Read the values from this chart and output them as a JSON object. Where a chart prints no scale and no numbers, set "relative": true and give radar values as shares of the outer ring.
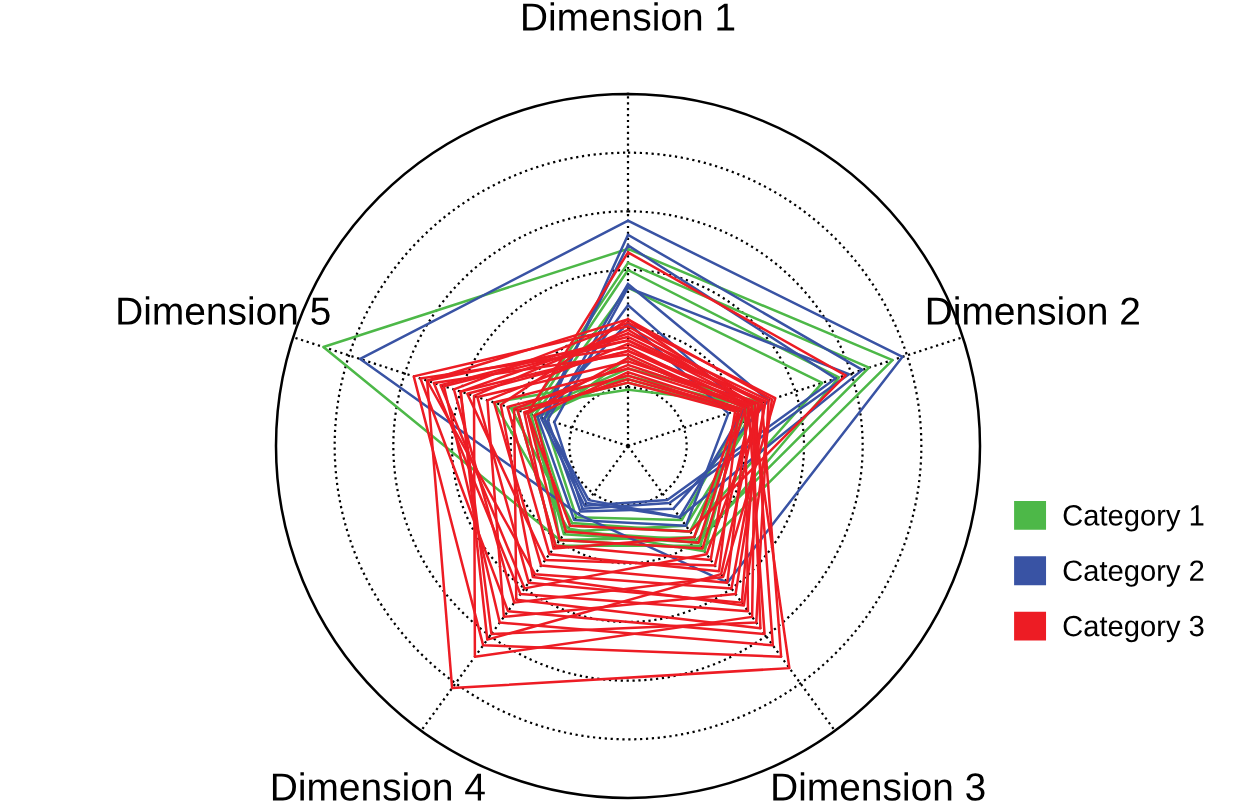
{
  "chart_data": {
    "type": "radar",
    "relative": true,
    "categories": [
      "Dimension 1",
      "Dimension 2",
      "Dimension 3",
      "Dimension 4",
      "Dimension 5"
    ],
    "grid": true,
    "legend": "right",
    "line_style": "solid",
    "marker": "none",
    "series": [
      {
        "name": "Category 1",
        "color": "#4db848",
        "values": [
          0.56,
          0.79,
          0.36,
          0.33,
          0.91
        ]
      },
      {
        "color": "#4db848",
        "values": [
          0.52,
          0.72,
          0.33,
          0.3,
          0.3
        ]
      },
      {
        "color": "#4db848",
        "values": [
          0.45,
          0.58,
          0.3,
          0.28,
          0.28
        ]
      },
      {
        "color": "#4db848",
        "values": [
          0.22,
          0.4,
          0.28,
          0.3,
          0.3
        ]
      },
      {
        "color": "#4db848",
        "values": [
          0.2,
          0.36,
          0.32,
          0.33,
          0.27
        ]
      },
      {
        "color": "#4db848",
        "values": [
          0.18,
          0.33,
          0.35,
          0.35,
          0.33
        ]
      },
      {
        "color": "#4db848",
        "values": [
          0.16,
          0.38,
          0.3,
          0.27,
          0.35
        ]
      },
      {
        "color": "#4db848",
        "values": [
          0.25,
          0.35,
          0.26,
          0.25,
          0.25
        ]
      },
      {
        "color": "#4db848",
        "values": [
          0.5,
          0.63,
          0.34,
          0.31,
          0.29
        ]
      },
      {
        "color": "#4db848",
        "values": [
          0.19,
          0.34,
          0.37,
          0.29,
          0.4
        ]
      },
      {
        "name": "Category 2",
        "color": "#3953a4",
        "values": [
          0.64,
          0.82,
          0.48,
          0.24,
          0.8
        ]
      },
      {
        "color": "#3953a4",
        "values": [
          0.6,
          0.7,
          0.25,
          0.2,
          0.25
        ]
      },
      {
        "color": "#3953a4",
        "values": [
          0.45,
          0.66,
          0.2,
          0.22,
          0.22
        ]
      },
      {
        "color": "#3953a4",
        "values": [
          0.46,
          0.42,
          0.22,
          0.23,
          0.24
        ]
      },
      {
        "color": "#3953a4",
        "values": [
          0.4,
          0.35,
          0.25,
          0.19,
          0.25
        ]
      },
      {
        "color": "#3953a4",
        "values": [
          0.57,
          0.62,
          0.19,
          0.21,
          0.26
        ]
      },
      {
        "color": "#3953a4",
        "values": [
          0.35,
          0.3,
          0.28,
          0.26,
          0.27
        ]
      },
      {
        "name": "Category 3",
        "color": "#ed1c24",
        "values": [
          0.55,
          0.65,
          0.3,
          0.28,
          0.3
        ]
      },
      {
        "color": "#ed1c24",
        "values": [
          0.36,
          0.37,
          0.78,
          0.85,
          0.6
        ]
      },
      {
        "color": "#ed1c24",
        "values": [
          0.34,
          0.4,
          0.74,
          0.7,
          0.64
        ]
      },
      {
        "color": "#ed1c24",
        "values": [
          0.3,
          0.38,
          0.7,
          0.62,
          0.55
        ]
      },
      {
        "color": "#ed1c24",
        "values": [
          0.28,
          0.36,
          0.66,
          0.58,
          0.62
        ]
      },
      {
        "color": "#ed1c24",
        "values": [
          0.32,
          0.42,
          0.62,
          0.66,
          0.5
        ]
      },
      {
        "color": "#ed1c24",
        "values": [
          0.26,
          0.35,
          0.58,
          0.52,
          0.58
        ]
      },
      {
        "color": "#ed1c24",
        "values": [
          0.24,
          0.39,
          0.55,
          0.48,
          0.45
        ]
      },
      {
        "color": "#ed1c24",
        "values": [
          0.3,
          0.41,
          0.5,
          0.45,
          0.6
        ]
      },
      {
        "color": "#ed1c24",
        "values": [
          0.22,
          0.36,
          0.48,
          0.42,
          0.4
        ]
      },
      {
        "color": "#ed1c24",
        "values": [
          0.35,
          0.44,
          0.46,
          0.55,
          0.52
        ]
      },
      {
        "color": "#ed1c24",
        "values": [
          0.2,
          0.33,
          0.44,
          0.38,
          0.36
        ]
      },
      {
        "color": "#ed1c24",
        "values": [
          0.27,
          0.37,
          0.42,
          0.4,
          0.48
        ]
      },
      {
        "color": "#ed1c24",
        "values": [
          0.18,
          0.32,
          0.4,
          0.35,
          0.33
        ]
      },
      {
        "color": "#ed1c24",
        "values": [
          0.31,
          0.4,
          0.38,
          0.5,
          0.56
        ]
      },
      {
        "color": "#ed1c24",
        "values": [
          0.25,
          0.35,
          0.36,
          0.33,
          0.3
        ]
      },
      {
        "color": "#ed1c24",
        "values": [
          0.33,
          0.38,
          0.6,
          0.74,
          0.46
        ]
      },
      {
        "color": "#ed1c24",
        "values": [
          0.29,
          0.41,
          0.52,
          0.6,
          0.42
        ]
      },
      {
        "color": "#ed1c24",
        "values": [
          0.21,
          0.34,
          0.34,
          0.3,
          0.28
        ]
      },
      {
        "color": "#ed1c24",
        "values": [
          0.36,
          0.43,
          0.56,
          0.46,
          0.38
        ]
      },
      {
        "color": "#ed1c24",
        "values": [
          0.23,
          0.37,
          0.64,
          0.54,
          0.34
        ]
      },
      {
        "color": "#ed1c24",
        "values": [
          0.27,
          0.39,
          0.45,
          0.68,
          0.5
        ]
      },
      {
        "color": "#ed1c24",
        "values": [
          0.19,
          0.33,
          0.32,
          0.36,
          0.31
        ]
      }
    ]
  }
}
